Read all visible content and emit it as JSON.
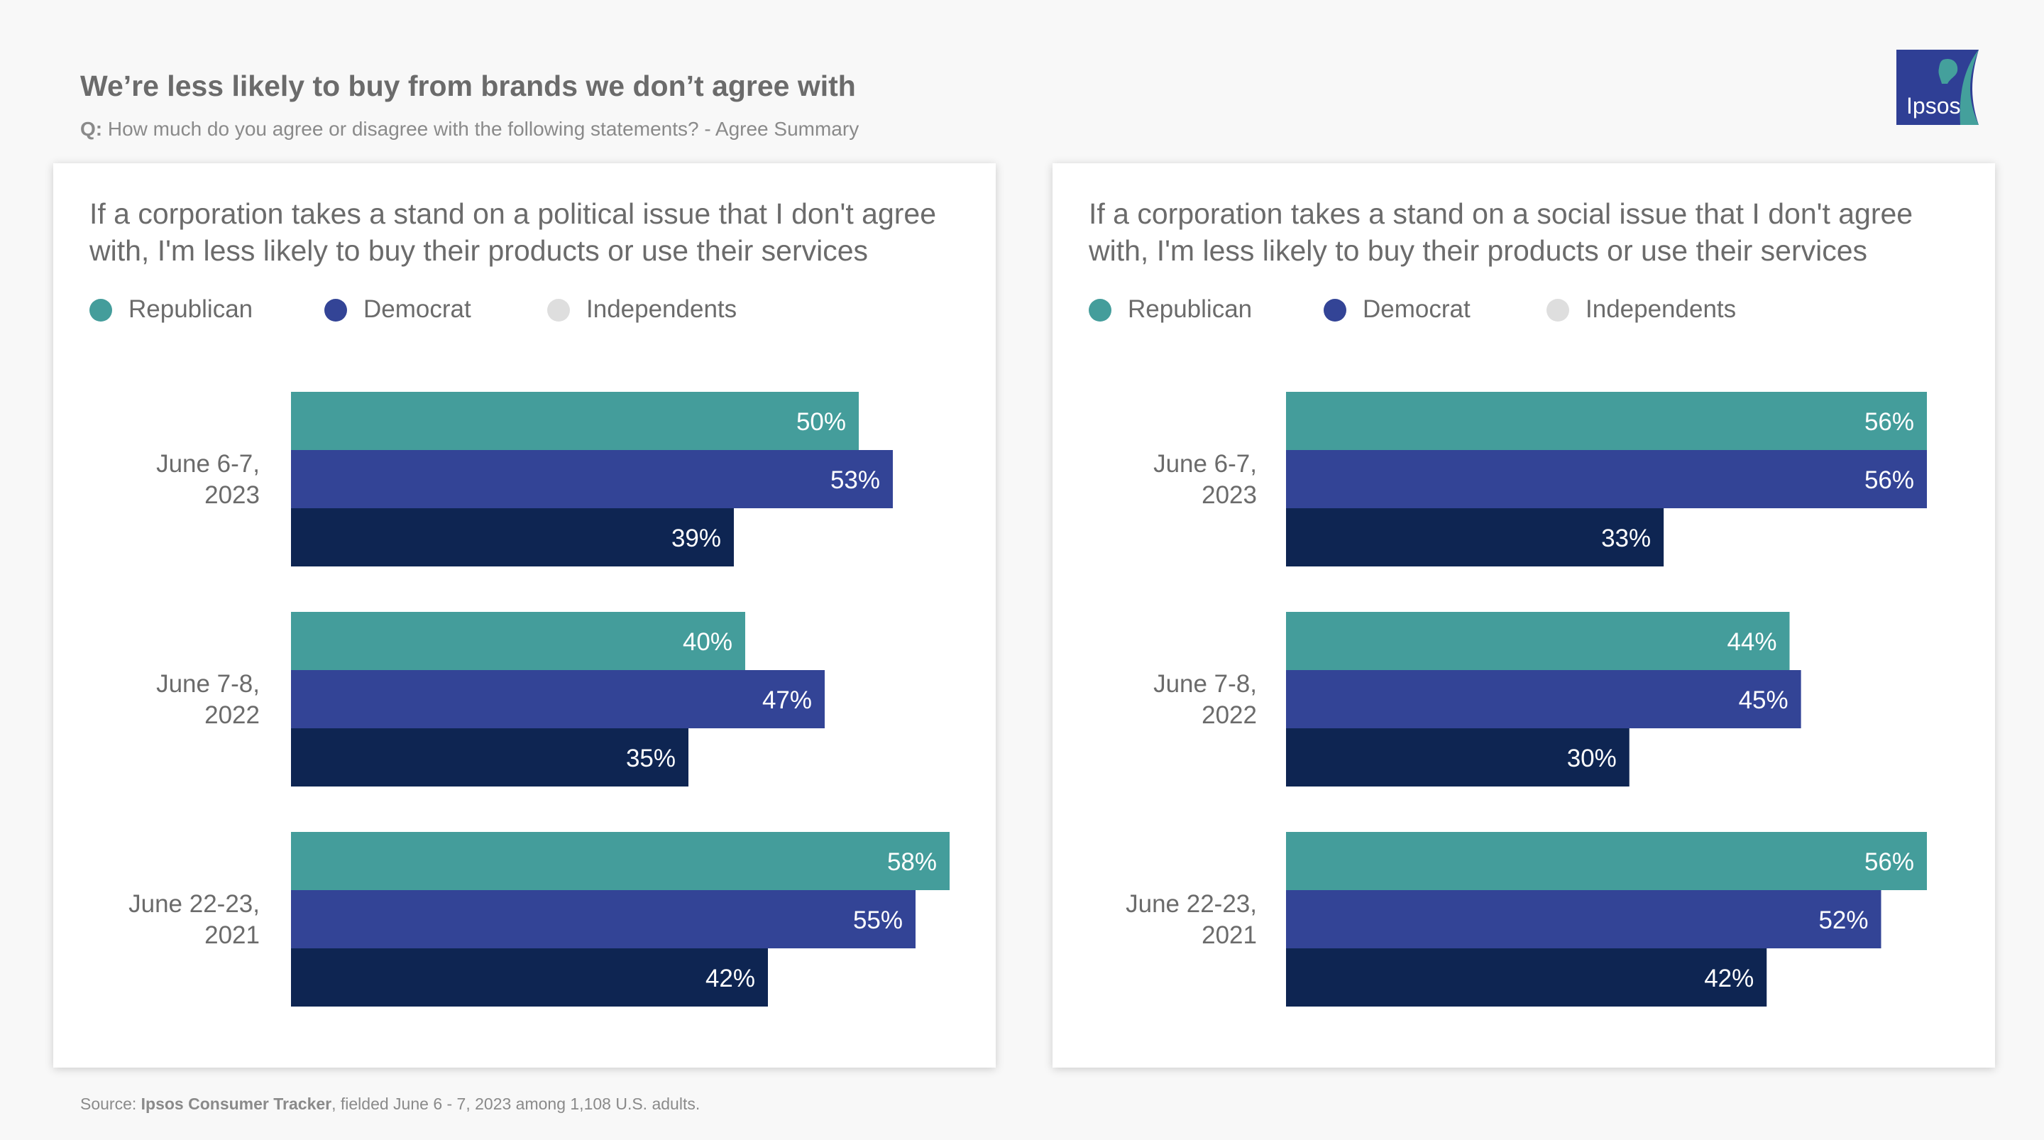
{
  "header": {
    "title": "We’re less likely to buy from brands we don’t agree with",
    "question_prefix": "Q:",
    "question": "How much do you agree or disagree with the following statements? - Agree Summary"
  },
  "logo": {
    "text": "Ipsos",
    "color": "#2f3f95",
    "accent": "#44a09c"
  },
  "source": {
    "prefix": "Source: ",
    "name": "Ipsos Consumer Tracker",
    "rest": ", fielded June 6 - 7, 2023 among 1,108 U.S. adults."
  },
  "colors": {
    "republican": "#449d9b",
    "democrat": "#334496",
    "independents": "#0e2552",
    "independents_legend": "#dedede"
  },
  "chart_data": [
    {
      "type": "bar",
      "orientation": "horizontal",
      "title": "If a corporation takes a stand on a political issue that I don't agree with, I'm less likely to buy their products or use their services",
      "legend": [
        "Republican",
        "Democrat",
        "Independents"
      ],
      "categories": [
        [
          "June 6-7,",
          "2023"
        ],
        [
          "June 7-8,",
          "2022"
        ],
        [
          "June 22-23,",
          "2021"
        ]
      ],
      "series": [
        {
          "name": "Republican",
          "values": [
            50,
            40,
            58
          ]
        },
        {
          "name": "Democrat",
          "values": [
            53,
            47,
            55
          ]
        },
        {
          "name": "Independents",
          "values": [
            39,
            35,
            42
          ]
        }
      ],
      "value_suffix": "%",
      "xlim": [
        0,
        58
      ]
    },
    {
      "type": "bar",
      "orientation": "horizontal",
      "title": "If a corporation takes a stand on a social issue that I don't agree with, I'm less likely to buy their products or use their services",
      "legend": [
        "Republican",
        "Democrat",
        "Independents"
      ],
      "categories": [
        [
          "June 6-7,",
          "2023"
        ],
        [
          "June 7-8,",
          "2022"
        ],
        [
          "June 22-23,",
          "2021"
        ]
      ],
      "series": [
        {
          "name": "Republican",
          "values": [
            56,
            44,
            56
          ]
        },
        {
          "name": "Democrat",
          "values": [
            56,
            45,
            52
          ]
        },
        {
          "name": "Independents",
          "values": [
            33,
            30,
            42
          ]
        }
      ],
      "value_suffix": "%",
      "xlim": [
        0,
        56
      ]
    }
  ]
}
